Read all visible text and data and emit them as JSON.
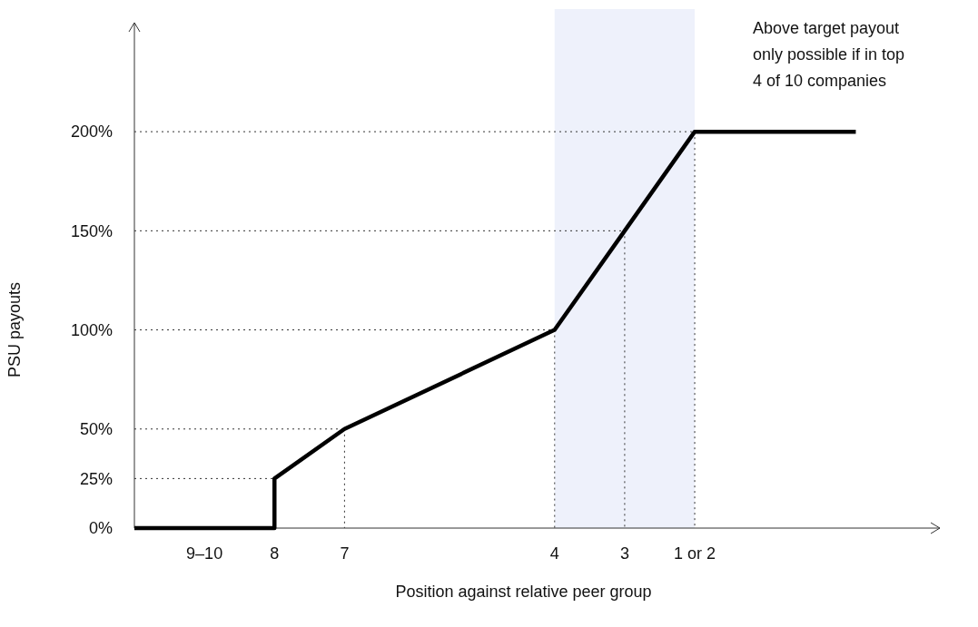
{
  "chart_data": {
    "type": "line",
    "xlabel": "Position against relative peer group",
    "ylabel": "PSU payouts",
    "x": [
      10,
      8,
      8,
      7,
      4,
      3,
      2,
      -0.3
    ],
    "series": [
      {
        "color": "#000000",
        "values": [
          0,
          0,
          25,
          50,
          100,
          150,
          200,
          200
        ]
      }
    ],
    "xlim": [
      10,
      -1.5
    ],
    "ylim": [
      0,
      255
    ],
    "xticks": [
      {
        "value": 9,
        "label": "9–10"
      },
      8,
      7,
      4,
      3,
      {
        "value": 2,
        "label": "1 or 2"
      }
    ],
    "yticks": [
      {
        "value": 0,
        "label": "0%"
      },
      {
        "value": 25,
        "label": "25%"
      },
      {
        "value": 50,
        "label": "50%"
      },
      {
        "value": 100,
        "label": "100%"
      },
      {
        "value": 150,
        "label": "150%"
      },
      {
        "value": 200,
        "label": "200%"
      }
    ],
    "bands": [
      {
        "axis": "x",
        "from": 4,
        "to": 2,
        "color": "#eef1fb"
      }
    ],
    "ref_lines": [
      {
        "axis": "y",
        "value": 25,
        "color": "#333333",
        "line_style": "dotted"
      },
      {
        "axis": "y",
        "value": 50,
        "color": "#333333",
        "line_style": "dotted"
      },
      {
        "axis": "y",
        "value": 100,
        "color": "#333333",
        "line_style": "dotted"
      },
      {
        "axis": "y",
        "value": 150,
        "color": "#333333",
        "line_style": "dotted"
      },
      {
        "axis": "y",
        "value": 200,
        "color": "#333333",
        "line_style": "dotted"
      },
      {
        "axis": "x",
        "value": 7,
        "color": "#333333",
        "line_style": "dotted"
      },
      {
        "axis": "x",
        "value": 4,
        "color": "#333333",
        "line_style": "dotted"
      },
      {
        "axis": "x",
        "value": 3,
        "color": "#333333",
        "line_style": "dotted"
      },
      {
        "axis": "x",
        "value": 2,
        "color": "#333333",
        "line_style": "dotted"
      }
    ],
    "annotations": [
      "Above target payout only possible if in top 4 of 10 companies"
    ],
    "marker": "none",
    "line_style": "solid"
  }
}
